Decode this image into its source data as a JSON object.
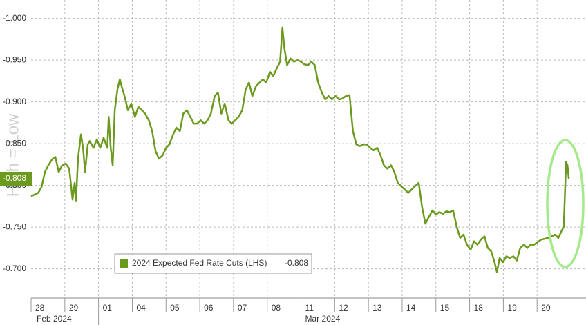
{
  "chart_data": {
    "type": "line",
    "axis_note": "High = Low",
    "ylim": [
      -0.665,
      -1.022
    ],
    "yticks": [
      {
        "value": -1.0,
        "label": "-1.000"
      },
      {
        "value": -0.95,
        "label": "-0.950"
      },
      {
        "value": -0.9,
        "label": "-0.900"
      },
      {
        "value": -0.85,
        "label": "-0.850"
      },
      {
        "value": -0.8,
        "label": "-0.800"
      },
      {
        "value": -0.75,
        "label": "-0.750"
      },
      {
        "value": -0.7,
        "label": "-0.700"
      }
    ],
    "xlim": [
      0,
      16.45
    ],
    "xticks": [
      {
        "value": 0,
        "label": "28"
      },
      {
        "value": 1,
        "label": "29"
      },
      {
        "value": 2,
        "label": "01"
      },
      {
        "value": 3,
        "label": "04"
      },
      {
        "value": 4,
        "label": "05"
      },
      {
        "value": 5,
        "label": "06"
      },
      {
        "value": 6,
        "label": "07"
      },
      {
        "value": 7,
        "label": "08"
      },
      {
        "value": 8,
        "label": "11"
      },
      {
        "value": 9,
        "label": "12"
      },
      {
        "value": 10,
        "label": "13"
      },
      {
        "value": 11,
        "label": "14"
      },
      {
        "value": 12,
        "label": "15"
      },
      {
        "value": 13,
        "label": "18"
      },
      {
        "value": 14,
        "label": "19"
      },
      {
        "value": 15,
        "label": "20"
      }
    ],
    "months": [
      "Feb 2024",
      "Mar 2024"
    ],
    "grid": true,
    "last_value": -0.808,
    "x": [
      0,
      0.21,
      0.31,
      0.41,
      0.51,
      0.62,
      0.72,
      0.82,
      0.92,
      1.03,
      1.13,
      1.23,
      1.29,
      1.33,
      1.39,
      1.48,
      1.54,
      1.6,
      1.68,
      1.74,
      1.85,
      1.95,
      2.05,
      2.15,
      2.26,
      2.3,
      2.36,
      2.42,
      2.48,
      2.56,
      2.63,
      2.71,
      2.77,
      2.87,
      2.97,
      3.08,
      3.18,
      3.28,
      3.38,
      3.49,
      3.59,
      3.69,
      3.79,
      3.9,
      4.0,
      4.1,
      4.21,
      4.31,
      4.41,
      4.51,
      4.62,
      4.72,
      4.82,
      4.92,
      5.03,
      5.13,
      5.23,
      5.33,
      5.44,
      5.54,
      5.64,
      5.74,
      5.85,
      5.95,
      6.05,
      6.15,
      6.26,
      6.36,
      6.46,
      6.56,
      6.67,
      6.77,
      6.87,
      6.97,
      7.08,
      7.18,
      7.28,
      7.38,
      7.45,
      7.51,
      7.59,
      7.69,
      7.79,
      7.9,
      8.0,
      8.1,
      8.21,
      8.31,
      8.41,
      8.51,
      8.62,
      8.72,
      8.82,
      8.92,
      9.03,
      9.13,
      9.23,
      9.33,
      9.44,
      9.54,
      9.64,
      9.74,
      9.85,
      9.95,
      10.05,
      10.15,
      10.26,
      10.36,
      10.46,
      10.56,
      10.67,
      10.77,
      10.87,
      10.97,
      11.08,
      11.18,
      11.28,
      11.38,
      11.49,
      11.59,
      11.69,
      11.79,
      11.9,
      12.0,
      12.1,
      12.21,
      12.31,
      12.41,
      12.51,
      12.62,
      12.72,
      12.82,
      12.92,
      13.03,
      13.13,
      13.23,
      13.33,
      13.44,
      13.54,
      13.64,
      13.74,
      13.81,
      13.89,
      13.99,
      14.09,
      14.19,
      14.3,
      14.4,
      14.5,
      14.61,
      14.71,
      14.81,
      14.91,
      15.02,
      15.12,
      15.22,
      15.32,
      15.43,
      15.53,
      15.63,
      15.73,
      15.79,
      15.86,
      15.9,
      15.94
    ],
    "series": [
      {
        "name": "2024 Expected Fed Rate Cuts (LHS)",
        "color": "#6b9a1e",
        "values": [
          -0.787,
          -0.791,
          -0.798,
          -0.816,
          -0.824,
          -0.831,
          -0.834,
          -0.816,
          -0.824,
          -0.826,
          -0.82,
          -0.783,
          -0.803,
          -0.781,
          -0.832,
          -0.861,
          -0.845,
          -0.816,
          -0.849,
          -0.853,
          -0.845,
          -0.855,
          -0.845,
          -0.857,
          -0.845,
          -0.882,
          -0.845,
          -0.824,
          -0.89,
          -0.915,
          -0.927,
          -0.915,
          -0.907,
          -0.89,
          -0.898,
          -0.882,
          -0.894,
          -0.89,
          -0.886,
          -0.878,
          -0.865,
          -0.841,
          -0.832,
          -0.836,
          -0.845,
          -0.849,
          -0.861,
          -0.869,
          -0.865,
          -0.886,
          -0.89,
          -0.882,
          -0.874,
          -0.874,
          -0.878,
          -0.874,
          -0.878,
          -0.886,
          -0.907,
          -0.911,
          -0.886,
          -0.898,
          -0.878,
          -0.874,
          -0.878,
          -0.882,
          -0.89,
          -0.915,
          -0.923,
          -0.907,
          -0.919,
          -0.923,
          -0.927,
          -0.923,
          -0.936,
          -0.931,
          -0.94,
          -0.948,
          -0.989,
          -0.964,
          -0.944,
          -0.952,
          -0.948,
          -0.95,
          -0.948,
          -0.945,
          -0.944,
          -0.948,
          -0.944,
          -0.923,
          -0.911,
          -0.903,
          -0.907,
          -0.903,
          -0.907,
          -0.903,
          -0.904,
          -0.907,
          -0.908,
          -0.865,
          -0.849,
          -0.847,
          -0.849,
          -0.849,
          -0.845,
          -0.842,
          -0.845,
          -0.836,
          -0.824,
          -0.82,
          -0.824,
          -0.816,
          -0.803,
          -0.799,
          -0.795,
          -0.791,
          -0.795,
          -0.799,
          -0.803,
          -0.774,
          -0.754,
          -0.762,
          -0.77,
          -0.765,
          -0.768,
          -0.766,
          -0.769,
          -0.768,
          -0.77,
          -0.75,
          -0.737,
          -0.741,
          -0.729,
          -0.723,
          -0.733,
          -0.729,
          -0.735,
          -0.739,
          -0.725,
          -0.721,
          -0.708,
          -0.696,
          -0.713,
          -0.708,
          -0.715,
          -0.713,
          -0.715,
          -0.71,
          -0.725,
          -0.729,
          -0.725,
          -0.729,
          -0.729,
          -0.732,
          -0.735,
          -0.736,
          -0.737,
          -0.739,
          -0.741,
          -0.737,
          -0.746,
          -0.75,
          -0.828,
          -0.824,
          -0.808
        ]
      }
    ]
  }
}
